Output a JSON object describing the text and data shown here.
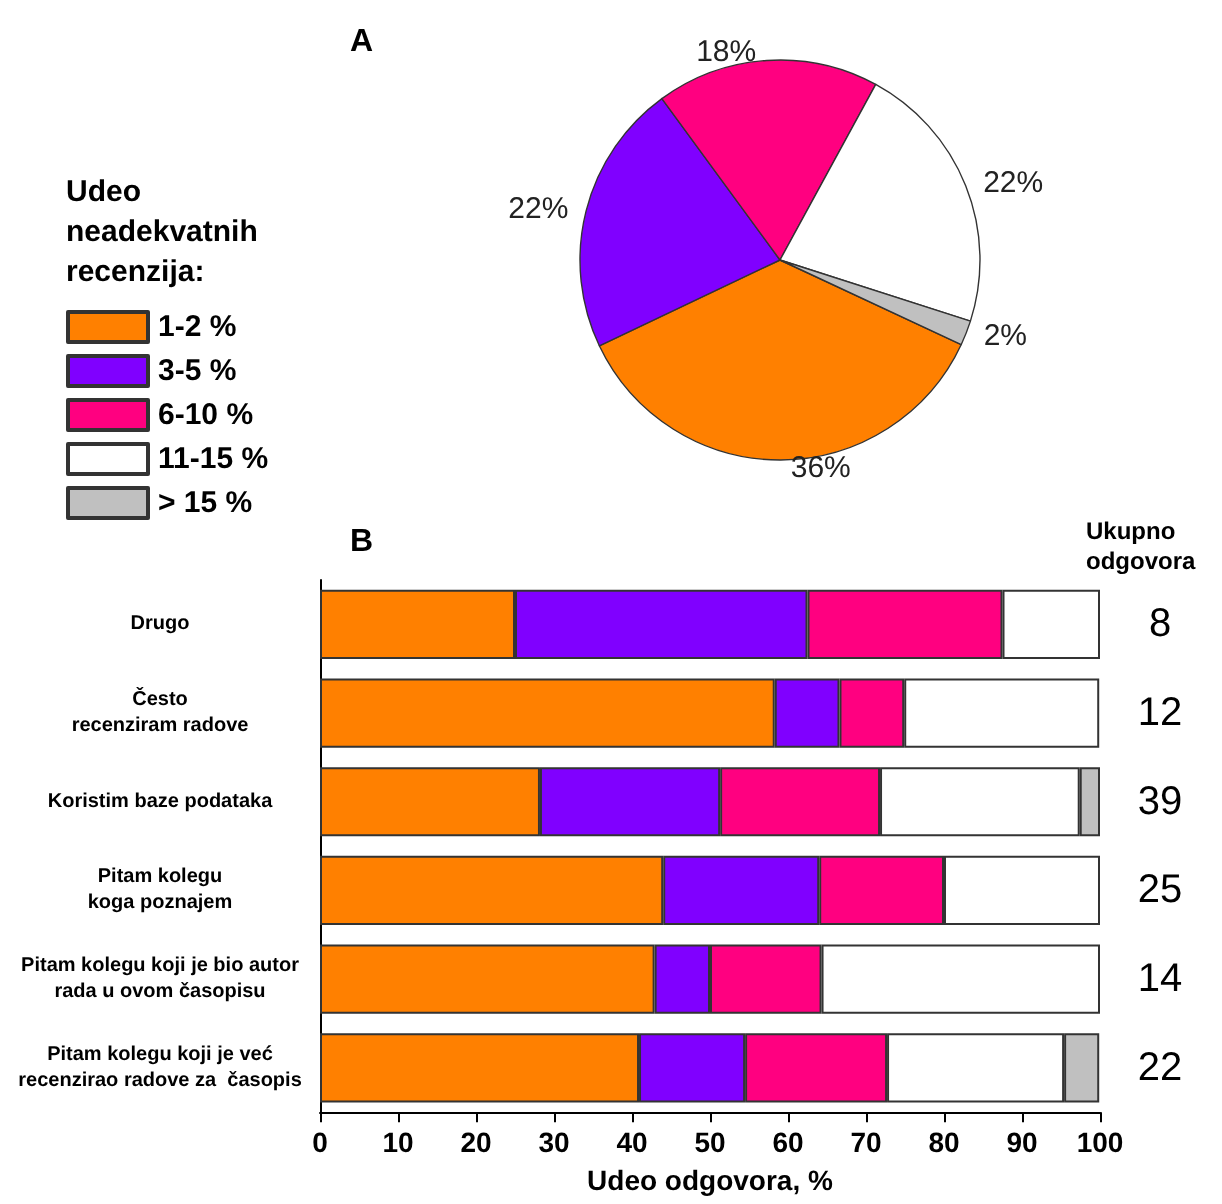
{
  "chart_data": [
    {
      "type": "pie",
      "title": "A",
      "legend_title": "Udeo neadekvatnih recenzija:",
      "legend": "left",
      "categories": [
        "1-2 %",
        "3-5 %",
        "6-10 %",
        "11-15 %",
        "> 15 %"
      ],
      "values": [
        36,
        22,
        18,
        22,
        2
      ],
      "value_labels": [
        "36%",
        "22%",
        "18%",
        "22%",
        "2%"
      ],
      "colors": [
        "#ff8000",
        "#8000ff",
        "#ff0080",
        "#ffffff",
        "#c0c0c0"
      ]
    },
    {
      "type": "bar",
      "title": "B",
      "orientation": "horizontal",
      "stacked": true,
      "xlabel": "Udeo odgovora, %",
      "categories": [
        "Drugo",
        "Često\nrecenziram radove",
        "Koristim baze podataka",
        "Pitam kolegu\nkoga poznajem",
        "Pitam kolegu koji je bio autor\nrada u ovom časopisu",
        "Pitam kolegu koji je već\nrecenzirao radove za  časopis"
      ],
      "series": [
        {
          "color": "#ff8000",
          "values": [
            25,
            58.3,
            28.2,
            44,
            42.9,
            40.9
          ]
        },
        {
          "color": "#8000ff",
          "values": [
            37.5,
            8.3,
            23.1,
            20,
            7.1,
            13.6
          ]
        },
        {
          "color": "#ff0080",
          "values": [
            25,
            8.3,
            20.5,
            16,
            14.3,
            18.2
          ]
        },
        {
          "color": "#ffffff",
          "values": [
            12.5,
            25,
            25.6,
            20,
            35.7,
            22.7
          ]
        },
        {
          "color": "#c0c0c0",
          "values": [
            null,
            null,
            2.6,
            null,
            null,
            4.5
          ]
        }
      ],
      "xlim": [
        0,
        100
      ],
      "xticks": [
        0,
        10,
        20,
        30,
        40,
        50,
        60,
        70,
        80,
        90,
        100
      ],
      "annotations": [
        "Ukupno odgovora",
        "8",
        "12",
        "39",
        "25",
        "14",
        "22"
      ]
    }
  ]
}
